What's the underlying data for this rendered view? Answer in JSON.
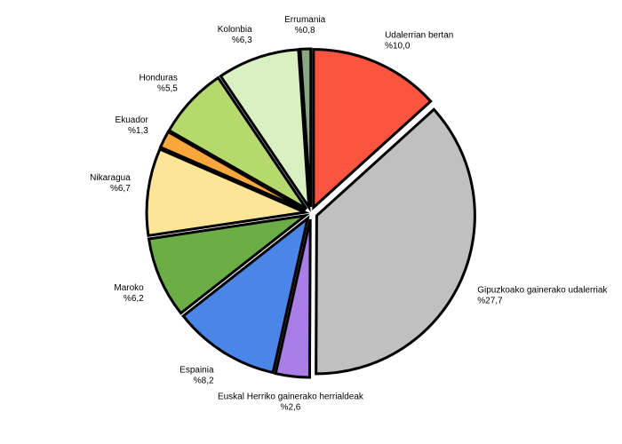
{
  "chart_data": {
    "type": "pie",
    "categories": [
      "Udalerrian bertan",
      "Gipuzkoako gainerako udalerriak",
      "Euskal Herriko gainerako herrialdeak",
      "Espainia",
      "Maroko",
      "Nikaragua",
      "Ekuador",
      "Honduras",
      "Kolonbia",
      "Errumania"
    ],
    "values": [
      10.0,
      27.7,
      2.6,
      8.2,
      6.2,
      6.7,
      1.3,
      5.5,
      6.3,
      0.8
    ],
    "value_labels": [
      "%10,0",
      "%27,7",
      "%2,6",
      "%8,2",
      "%6,2",
      "%6,7",
      "%1,3",
      "%5,5",
      "%6,3",
      "%0,8"
    ],
    "colors": [
      "#f9553f",
      "#c0c0c0",
      "#a87ee6",
      "#4a86e8",
      "#6aae45",
      "#fce596",
      "#f9a73c",
      "#b6d96e",
      "#d9f0c2",
      "#8aa683"
    ]
  }
}
